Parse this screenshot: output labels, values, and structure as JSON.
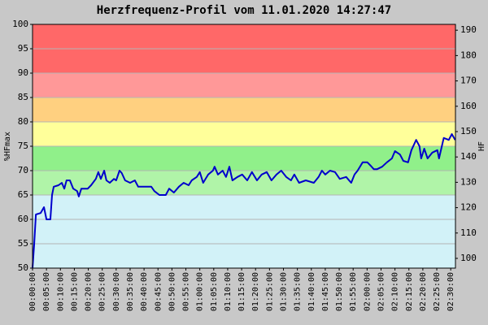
{
  "chart_data": {
    "type": "line",
    "title": "Herzfrequenz-Profil vom 11.01.2020 14:27:47",
    "ylabel": "%HFmax",
    "y2label": "HF",
    "x": [
      0,
      0.6,
      1.2,
      2.9,
      4.1,
      5,
      6.4,
      7,
      7.6,
      9.3,
      10.5,
      11.4,
      12.2,
      13.4,
      14.6,
      16,
      16.6,
      17.5,
      19.8,
      21,
      22.7,
      23.6,
      24.5,
      25.7,
      26.5,
      27.7,
      29.2,
      30,
      31.2,
      32,
      33.2,
      35,
      36.7,
      37.9,
      40.2,
      42.6,
      43.7,
      45.5,
      47.8,
      49,
      50.7,
      52.5,
      54.2,
      56,
      57.1,
      58.9,
      60,
      61.2,
      63,
      64.7,
      65.3,
      66.5,
      68.2,
      69.4,
      70.6,
      71.7,
      73.5,
      75.2,
      77,
      78.7,
      80.5,
      82.2,
      84,
      85.7,
      87.5,
      89.2,
      91,
      92.7,
      93.9,
      95.6,
      98,
      100.9,
      102.6,
      103.8,
      105,
      106.7,
      108.5,
      110.2,
      112.5,
      114.3,
      115.5,
      116.6,
      118.4,
      120.1,
      121.3,
      122.4,
      123.6,
      125.4,
      127.1,
      128.9,
      130,
      131.8,
      133,
      134.7,
      135.9,
      137.6,
      138.8,
      139.4,
      140.5,
      141.7,
      143.4,
      145.2,
      145.8,
      147.5,
      149.3,
      150.4,
      151.6
    ],
    "series": [
      {
        "name": "HF",
        "color": "#0000cc",
        "values": [
          50,
          55,
          61,
          61.3,
          62.5,
          60,
          60,
          65,
          66.7,
          67,
          67.5,
          66.3,
          68,
          68,
          66.3,
          65.8,
          64.7,
          66.3,
          66.3,
          67,
          68.3,
          69.7,
          68.3,
          70,
          68,
          67.5,
          68.3,
          68,
          70,
          69.5,
          68,
          67.5,
          68,
          66.7,
          66.7,
          66.7,
          65.8,
          65,
          65,
          66.3,
          65.5,
          66.7,
          67.5,
          67,
          68,
          68.7,
          69.7,
          67.5,
          69.2,
          70,
          70.8,
          69.2,
          70,
          68.7,
          70.8,
          68,
          68.7,
          69.2,
          68,
          69.7,
          68,
          69.2,
          69.7,
          68,
          69.2,
          70,
          68.7,
          68,
          69.2,
          67.5,
          68,
          67.5,
          68.7,
          70,
          69.2,
          70,
          69.7,
          68.3,
          68.7,
          67.5,
          69.2,
          70,
          71.7,
          71.7,
          71,
          70.3,
          70.3,
          70.8,
          71.7,
          72.5,
          74,
          73.3,
          72,
          71.7,
          74.2,
          76.3,
          75,
          72.5,
          74.5,
          72.5,
          73.7,
          74.2,
          72.5,
          76.7,
          76.3,
          77.5,
          76.3
        ]
      }
    ],
    "zones": [
      {
        "from": 50,
        "to": 65,
        "color": "#d2f2f8"
      },
      {
        "from": 65,
        "to": 70,
        "color": "#b0f4a8"
      },
      {
        "from": 70,
        "to": 75,
        "color": "#90f08a"
      },
      {
        "from": 75,
        "to": 80,
        "color": "#ffff9a"
      },
      {
        "from": 80,
        "to": 85,
        "color": "#ffd080"
      },
      {
        "from": 85,
        "to": 90,
        "color": "#ff9898"
      },
      {
        "from": 90,
        "to": 100,
        "color": "#ff6868"
      }
    ],
    "xlim": [
      0,
      151.7
    ],
    "xticks": [
      {
        "value": 0,
        "label": "00:00:00"
      },
      {
        "value": 5,
        "label": "00:05:00"
      },
      {
        "value": 10,
        "label": "00:10:00"
      },
      {
        "value": 15,
        "label": "00:15:00"
      },
      {
        "value": 20,
        "label": "00:20:00"
      },
      {
        "value": 25,
        "label": "00:25:00"
      },
      {
        "value": 30,
        "label": "00:30:00"
      },
      {
        "value": 35,
        "label": "00:35:00"
      },
      {
        "value": 40,
        "label": "00:40:00"
      },
      {
        "value": 45,
        "label": "00:45:00"
      },
      {
        "value": 50,
        "label": "00:50:00"
      },
      {
        "value": 55,
        "label": "00:55:00"
      },
      {
        "value": 60,
        "label": "01:00:00"
      },
      {
        "value": 65,
        "label": "01:05:00"
      },
      {
        "value": 70,
        "label": "01:10:00"
      },
      {
        "value": 75,
        "label": "01:15:00"
      },
      {
        "value": 80,
        "label": "01:20:00"
      },
      {
        "value": 85,
        "label": "01:25:00"
      },
      {
        "value": 90,
        "label": "01:30:00"
      },
      {
        "value": 95,
        "label": "01:35:00"
      },
      {
        "value": 100,
        "label": "01:40:00"
      },
      {
        "value": 105,
        "label": "01:45:00"
      },
      {
        "value": 110,
        "label": "01:50:00"
      },
      {
        "value": 115,
        "label": "01:55:00"
      },
      {
        "value": 120,
        "label": "02:00:00"
      },
      {
        "value": 125,
        "label": "02:05:00"
      },
      {
        "value": 130,
        "label": "02:10:00"
      },
      {
        "value": 135,
        "label": "02:15:00"
      },
      {
        "value": 140,
        "label": "02:20:00"
      },
      {
        "value": 145,
        "label": "02:25:00"
      },
      {
        "value": 150,
        "label": "02:30:00"
      }
    ],
    "ylim": [
      50,
      100
    ],
    "yticks": [
      50,
      55,
      60,
      65,
      70,
      75,
      80,
      85,
      90,
      95,
      100
    ],
    "y2lim": [
      96.15,
      192.3
    ],
    "y2ticks": [
      100,
      110,
      120,
      130,
      140,
      150,
      160,
      170,
      180,
      190
    ],
    "grid": true
  }
}
